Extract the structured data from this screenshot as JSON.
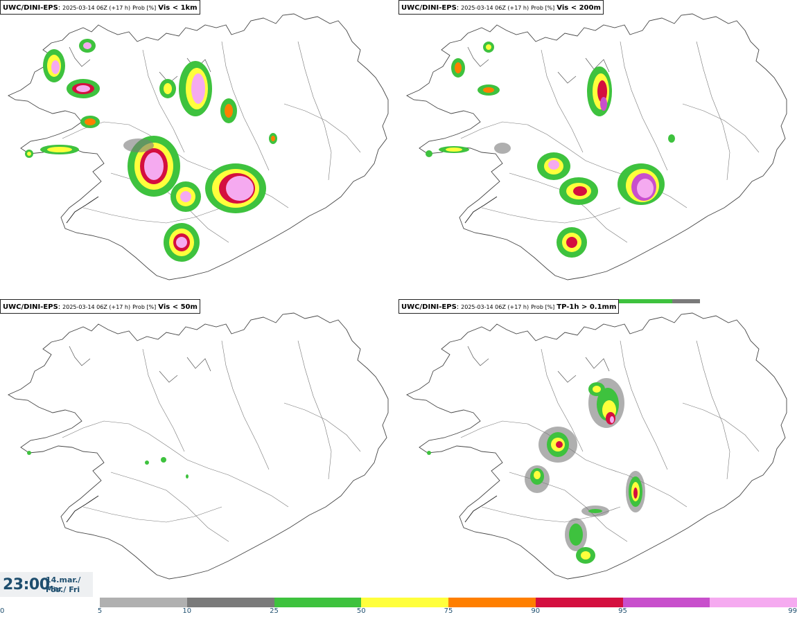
{
  "panels": [
    {
      "model": "UWC/DINI-EPS",
      "run": "2025-03-14 06Z (+17 h)",
      "prob": "Prob [%]",
      "variable": "Vis < 1km"
    },
    {
      "model": "UWC/DINI-EPS",
      "run": "2025-03-14 06Z (+17 h)",
      "prob": "Prob [%]",
      "variable": "Vis < 200m"
    },
    {
      "model": "UWC/DINI-EPS",
      "run": "2025-03-14 06Z (+17 h)",
      "prob": "Prob [%]",
      "variable": "Vis < 50m"
    },
    {
      "model": "UWC/DINI-EPS",
      "run": "2025-03-14 06Z (+17 h)",
      "prob": "Prob [%]",
      "variable": "TP-1h > 0.1mm"
    }
  ],
  "valid_time": {
    "time": "23:00",
    "date_line1": "14.mar./ Mar",
    "date_line2": "Fös./ Fri"
  },
  "colorbar": {
    "ticks": [
      "0",
      "5",
      "10",
      "25",
      "50",
      "75",
      "90",
      "95",
      "99"
    ],
    "colors": [
      "#b0b0b0",
      "#7a7a7a",
      "#3ec23e",
      "#ffff3c",
      "#ff7f00",
      "#d40f3f",
      "#c84fcc",
      "#f5aaf0"
    ]
  },
  "colors": {
    "prob_25_50": "#3ec23e",
    "prob_50_75": "#ffff3c",
    "prob_75_90": "#ff7f00",
    "prob_90_95": "#d40f3f",
    "prob_95_99": "#c84fcc",
    "prob_99": "#f5aaf0",
    "label_text": "#1e4e6e"
  }
}
